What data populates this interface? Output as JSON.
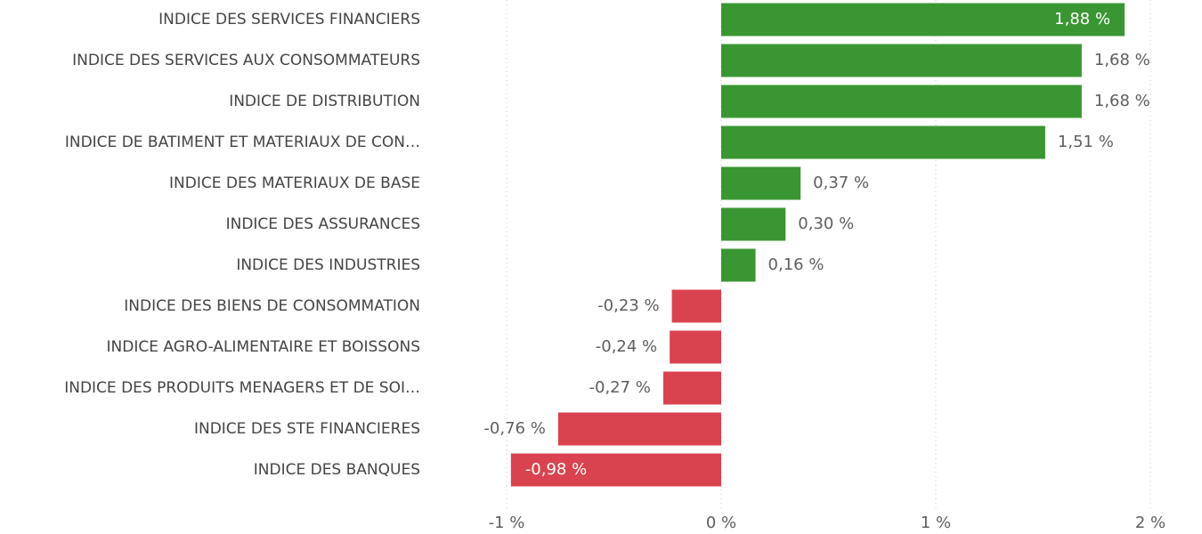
{
  "chart_data": {
    "type": "hbar",
    "categories": [
      "INDICE DES SERVICES FINANCIERS",
      "INDICE DES SERVICES AUX CONSOMMATEURS",
      "INDICE DE DISTRIBUTION",
      "INDICE DE BATIMENT ET MATERIAUX DE CON…",
      "INDICE DES MATERIAUX DE BASE",
      "INDICE DES ASSURANCES",
      "INDICE DES INDUSTRIES",
      "INDICE DES BIENS DE CONSOMMATION",
      "INDICE AGRO-ALIMENTAIRE ET BOISSONS",
      "INDICE DES PRODUITS MENAGERS ET DE SOI…",
      "INDICE DES STE FINANCIERES",
      "INDICE DES BANQUES"
    ],
    "values": [
      1.88,
      1.68,
      1.68,
      1.51,
      0.37,
      0.3,
      0.16,
      -0.23,
      -0.24,
      -0.27,
      -0.76,
      -0.98
    ],
    "value_labels": [
      "1,88 %",
      "1,68 %",
      "1,68 %",
      "1,51 %",
      "0,37 %",
      "0,30 %",
      "0,16 %",
      "-0,23 %",
      "-0,24 %",
      "-0,27 %",
      "-0,76 %",
      "-0,98 %"
    ],
    "positive_color": "#3a9632",
    "negative_color": "#d9434f",
    "xlim": [
      -1,
      2
    ],
    "xticks": [
      {
        "value": -1,
        "label": "-1 %"
      },
      {
        "value": 0,
        "label": "0 %"
      },
      {
        "value": 1,
        "label": "1 %"
      },
      {
        "value": 2,
        "label": "2 %"
      }
    ],
    "grid": true
  }
}
